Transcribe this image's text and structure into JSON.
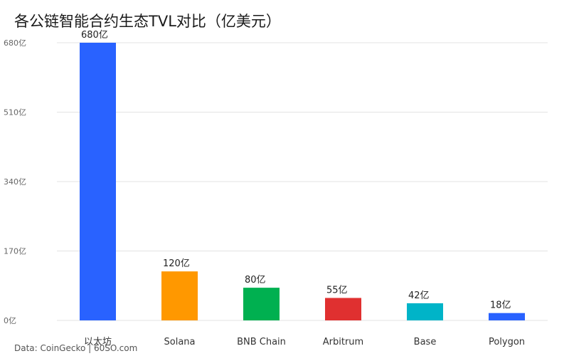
{
  "chart_data": {
    "type": "bar",
    "title": "各公链智能合约生态TVL对比（亿美元）",
    "categories": [
      "以太坊",
      "Solana",
      "BNB Chain",
      "Arbitrum",
      "Base",
      "Polygon"
    ],
    "values": [
      680,
      120,
      80,
      55,
      42,
      18
    ],
    "value_labels": [
      "680亿",
      "120亿",
      "80亿",
      "55亿",
      "42亿",
      "18亿"
    ],
    "bar_colors": [
      "#2962FF",
      "#FF9800",
      "#00B050",
      "#E03030",
      "#00B4C8",
      "#2962FF"
    ],
    "ylim": [
      0,
      680
    ],
    "yticks": [
      0,
      170,
      340,
      510,
      680
    ],
    "ytick_labels": [
      "0亿",
      "170亿",
      "340亿",
      "510亿",
      "680亿"
    ],
    "xlabel": "",
    "ylabel": "",
    "grid": true,
    "legend": false
  },
  "source": "Data: CoinGecko | 60SO.com"
}
